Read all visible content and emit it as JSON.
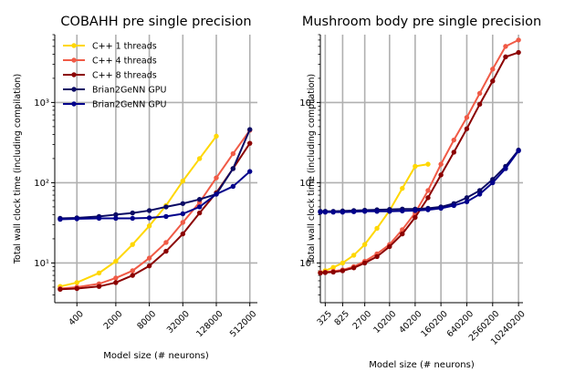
{
  "chart_data": [
    {
      "type": "line",
      "title": "COBAHH pre  single precision",
      "xlabel": "Model size (# neurons)",
      "ylabel": "Total wall clock time (including compilation)",
      "x_scale": "log",
      "y_scale": "log",
      "x_tick_labels": [
        "400",
        "2000",
        "8000",
        "32000",
        "128000",
        "512000"
      ],
      "x_tick_values": [
        400,
        2000,
        8000,
        32000,
        128000,
        512000
      ],
      "y_tick_labels": [
        "10¹",
        "10²",
        "10³"
      ],
      "y_tick_values": [
        10,
        100,
        1000
      ],
      "xlim": [
        160,
        700000
      ],
      "ylim": [
        3.2,
        7000
      ],
      "grid": true,
      "legend_location": "upper left",
      "series": [
        {
          "name": "C++  1 threads",
          "color": "#ffd700",
          "x": [
            200,
            400,
            1000,
            2000,
            4000,
            8000,
            16000,
            32000,
            64000,
            128000
          ],
          "y": [
            5.1,
            5.7,
            7.5,
            10.5,
            17,
            29,
            52,
            105,
            200,
            380
          ]
        },
        {
          "name": "C++  4 threads",
          "color": "#f05a46",
          "x": [
            200,
            400,
            1000,
            2000,
            4000,
            8000,
            16000,
            32000,
            64000,
            128000,
            256000,
            512000
          ],
          "y": [
            4.8,
            5.0,
            5.5,
            6.5,
            8.0,
            11.5,
            18,
            32,
            57,
            115,
            230,
            450
          ]
        },
        {
          "name": "C++  8 threads",
          "color": "#8b0000",
          "x": [
            200,
            400,
            1000,
            2000,
            4000,
            8000,
            16000,
            32000,
            64000,
            128000,
            256000,
            512000
          ],
          "y": [
            4.7,
            4.8,
            5.1,
            5.7,
            7.0,
            9.2,
            14,
            23,
            42,
            75,
            150,
            310
          ]
        },
        {
          "name": "Brian2GeNN GPU",
          "color": "#0a0a64",
          "x": [
            200,
            400,
            1000,
            2000,
            4000,
            8000,
            16000,
            32000,
            64000,
            128000,
            256000,
            512000
          ],
          "y": [
            36,
            36.5,
            38,
            40,
            42,
            45,
            50,
            55,
            62,
            72,
            150,
            460
          ]
        },
        {
          "name": "Brian2GeNN GPU",
          "color": "#00008b",
          "x": [
            200,
            400,
            1000,
            2000,
            4000,
            8000,
            16000,
            32000,
            64000,
            128000,
            256000,
            512000
          ],
          "y": [
            35,
            35.5,
            36,
            36,
            36,
            36.5,
            38,
            41,
            50,
            72,
            90,
            138
          ]
        }
      ]
    },
    {
      "type": "line",
      "title": "Mushroom body pre  single precision",
      "xlabel": "Model size (# neurons)",
      "ylabel": "Total wall clock time (including compilation)",
      "x_scale": "log",
      "y_scale": "log",
      "x_tick_labels": [
        "325",
        "825",
        "2700",
        "10200",
        "40200",
        "160200",
        "640200",
        "2560200",
        "10240200"
      ],
      "x_tick_values": [
        325,
        825,
        2700,
        10200,
        40200,
        160200,
        640200,
        2560200,
        10240200
      ],
      "y_tick_labels": [
        "10¹",
        "10²",
        "10³"
      ],
      "y_tick_values": [
        10,
        100,
        1000
      ],
      "xlim": [
        250,
        13000000
      ],
      "ylim": [
        3.2,
        7000
      ],
      "grid": true,
      "series": [
        {
          "name": "C++  1 threads",
          "color": "#ffd700",
          "x": [
            250,
            325,
            500,
            825,
            1500,
            2700,
            5200,
            10200,
            20200,
            40200,
            80200
          ],
          "y": [
            7.6,
            8.0,
            8.8,
            10,
            12.5,
            17,
            27,
            45,
            85,
            160,
            170
          ]
        },
        {
          "name": "C++  4 threads",
          "color": "#f05a46",
          "x": [
            250,
            325,
            500,
            825,
            1500,
            2700,
            5200,
            10200,
            20200,
            40200,
            80200,
            160200,
            320200,
            640200,
            1280200,
            2560200,
            5120200,
            10240200
          ],
          "y": [
            7.6,
            7.7,
            7.9,
            8.2,
            9.0,
            10.5,
            13,
            17,
            26,
            42,
            80,
            170,
            340,
            650,
            1300,
            2600,
            5000,
            6000
          ]
        },
        {
          "name": "C++  8 threads",
          "color": "#8b0000",
          "x": [
            250,
            325,
            500,
            825,
            1500,
            2700,
            5200,
            10200,
            20200,
            40200,
            80200,
            160200,
            320200,
            640200,
            1280200,
            2560200,
            5120200,
            10240200
          ],
          "y": [
            7.5,
            7.6,
            7.7,
            8.0,
            8.7,
            10,
            12,
            16,
            23,
            37,
            65,
            125,
            240,
            470,
            950,
            1850,
            3700,
            4200
          ]
        },
        {
          "name": "Brian2GeNN GPU",
          "color": "#0a0a64",
          "x": [
            250,
            325,
            500,
            825,
            1500,
            2700,
            5200,
            10200,
            20200,
            40200,
            80200,
            160200,
            320200,
            640200,
            1280200,
            2560200,
            5120200,
            10240200
          ],
          "y": [
            44,
            44,
            44,
            44.5,
            45,
            45.5,
            46,
            46.5,
            47,
            47,
            48,
            50,
            55,
            65,
            80,
            110,
            160,
            255
          ]
        },
        {
          "name": "Brian2GeNN GPU",
          "color": "#00008b",
          "x": [
            250,
            325,
            500,
            825,
            1500,
            2700,
            5200,
            10200,
            20200,
            40200,
            80200,
            160200,
            320200,
            640200,
            1280200,
            2560200,
            5120200,
            10240200
          ],
          "y": [
            43,
            43,
            43,
            43,
            43.5,
            44,
            44,
            44,
            44.5,
            45,
            46,
            48,
            52,
            58,
            72,
            100,
            150,
            250
          ]
        }
      ]
    }
  ]
}
